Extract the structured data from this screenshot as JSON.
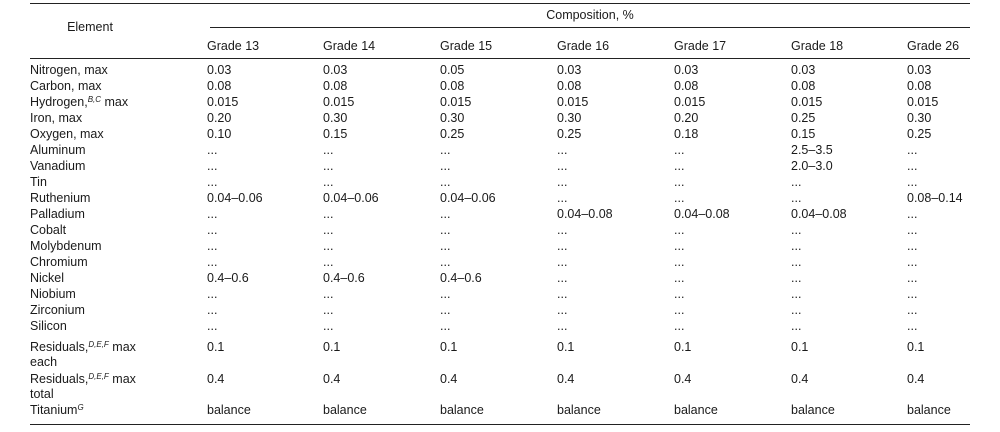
{
  "table": {
    "element_header": "Element",
    "composition_header": "Composition, %",
    "grades": [
      "Grade 13",
      "Grade 14",
      "Grade 15",
      "Grade 16",
      "Grade 17",
      "Grade 18",
      "Grade 26"
    ],
    "rows": [
      {
        "label": "Nitrogen, max",
        "sup": "",
        "suffix": "",
        "values": [
          "0.03",
          "0.03",
          "0.05",
          "0.03",
          "0.03",
          "0.03",
          "0.03"
        ]
      },
      {
        "label": "Carbon, max",
        "sup": "",
        "suffix": "",
        "values": [
          "0.08",
          "0.08",
          "0.08",
          "0.08",
          "0.08",
          "0.08",
          "0.08"
        ]
      },
      {
        "label": "Hydrogen,",
        "sup": "B,C",
        "suffix": " max",
        "values": [
          "0.015",
          "0.015",
          "0.015",
          "0.015",
          "0.015",
          "0.015",
          "0.015"
        ]
      },
      {
        "label": "Iron, max",
        "sup": "",
        "suffix": "",
        "values": [
          "0.20",
          "0.30",
          "0.30",
          "0.30",
          "0.20",
          "0.25",
          "0.30"
        ]
      },
      {
        "label": "Oxygen, max",
        "sup": "",
        "suffix": "",
        "values": [
          "0.10",
          "0.15",
          "0.25",
          "0.25",
          "0.18",
          "0.15",
          "0.25"
        ]
      },
      {
        "label": "Aluminum",
        "sup": "",
        "suffix": "",
        "values": [
          "...",
          "...",
          "...",
          "...",
          "...",
          "2.5–3.5",
          "..."
        ]
      },
      {
        "label": "Vanadium",
        "sup": "",
        "suffix": "",
        "values": [
          "...",
          "...",
          "...",
          "...",
          "...",
          "2.0–3.0",
          "..."
        ]
      },
      {
        "label": "Tin",
        "sup": "",
        "suffix": "",
        "values": [
          "...",
          "...",
          "...",
          "...",
          "...",
          "...",
          "..."
        ]
      },
      {
        "label": "Ruthenium",
        "sup": "",
        "suffix": "",
        "values": [
          "0.04–0.06",
          "0.04–0.06",
          "0.04–0.06",
          "...",
          "...",
          "...",
          "0.08–0.14"
        ]
      },
      {
        "label": "Palladium",
        "sup": "",
        "suffix": "",
        "values": [
          "...",
          "...",
          "...",
          "0.04–0.08",
          "0.04–0.08",
          "0.04–0.08",
          "..."
        ]
      },
      {
        "label": "Cobalt",
        "sup": "",
        "suffix": "",
        "values": [
          "...",
          "...",
          "...",
          "...",
          "...",
          "...",
          "..."
        ]
      },
      {
        "label": "Molybdenum",
        "sup": "",
        "suffix": "",
        "values": [
          "...",
          "...",
          "...",
          "...",
          "...",
          "...",
          "..."
        ]
      },
      {
        "label": "Chromium",
        "sup": "",
        "suffix": "",
        "values": [
          "...",
          "...",
          "...",
          "...",
          "...",
          "...",
          "..."
        ]
      },
      {
        "label": "Nickel",
        "sup": "",
        "suffix": "",
        "values": [
          "0.4–0.6",
          "0.4–0.6",
          "0.4–0.6",
          "...",
          "...",
          "...",
          "..."
        ]
      },
      {
        "label": "Niobium",
        "sup": "",
        "suffix": "",
        "values": [
          "...",
          "...",
          "...",
          "...",
          "...",
          "...",
          "..."
        ]
      },
      {
        "label": "Zirconium",
        "sup": "",
        "suffix": "",
        "values": [
          "...",
          "...",
          "...",
          "...",
          "...",
          "...",
          "..."
        ]
      },
      {
        "label": "Silicon",
        "sup": "",
        "suffix": "",
        "values": [
          "...",
          "...",
          "...",
          "...",
          "...",
          "...",
          "..."
        ]
      },
      {
        "label": "Residuals,",
        "sup": "D,E,F",
        "suffix": " max each",
        "values": [
          "0.1",
          "0.1",
          "0.1",
          "0.1",
          "0.1",
          "0.1",
          "0.1"
        ]
      },
      {
        "label": "Residuals,",
        "sup": "D,E,F",
        "suffix": " max total",
        "values": [
          "0.4",
          "0.4",
          "0.4",
          "0.4",
          "0.4",
          "0.4",
          "0.4"
        ]
      },
      {
        "label": "Titanium",
        "sup": "G",
        "suffix": "",
        "values": [
          "balance",
          "balance",
          "balance",
          "balance",
          "balance",
          "balance",
          "balance"
        ]
      }
    ]
  }
}
